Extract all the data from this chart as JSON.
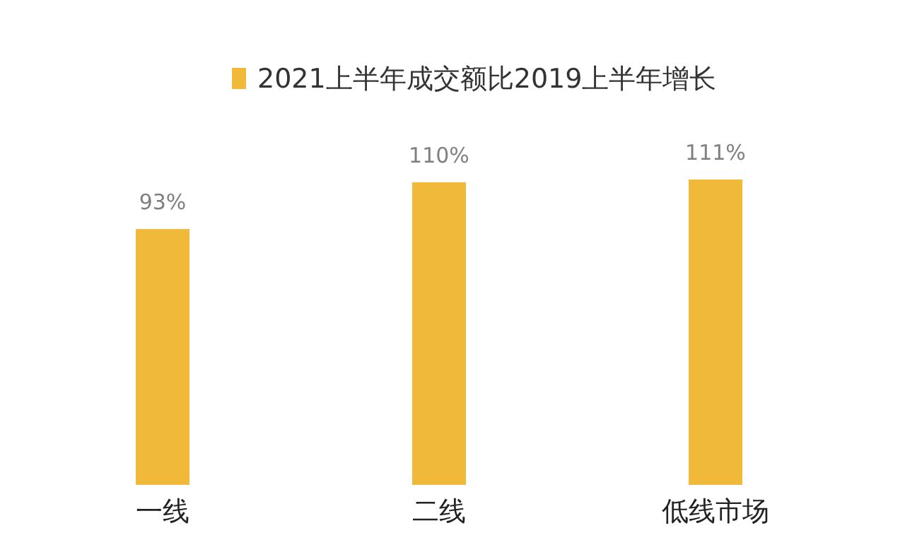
{
  "chart_data": {
    "type": "bar",
    "categories": [
      "一线",
      "二线",
      "低线市场"
    ],
    "series": [
      {
        "name": "2021上半年成交额比2019上半年增长",
        "color": "#f0b93a",
        "values": [
          93,
          110,
          111
        ],
        "value_labels": [
          "93%",
          "110%",
          "111%"
        ]
      }
    ],
    "legend": "top"
  }
}
